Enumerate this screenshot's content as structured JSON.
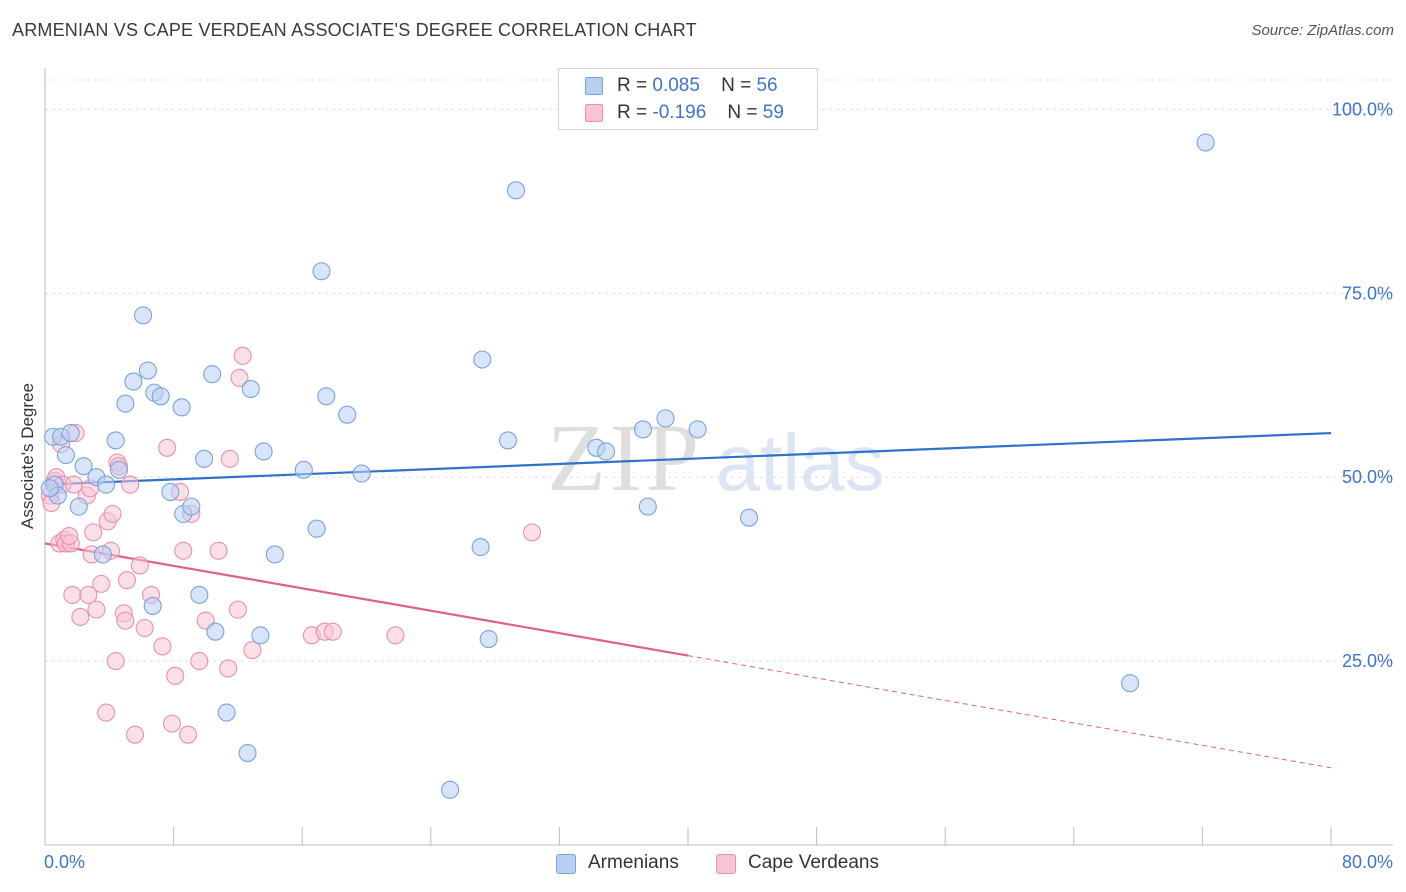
{
  "title": "ARMENIAN VS CAPE VERDEAN ASSOCIATE'S DEGREE CORRELATION CHART",
  "source": "Source: ZipAtlas.com",
  "watermark": {
    "zip": "ZIP",
    "atlas": "atlas"
  },
  "colors": {
    "blue_fill": "#b8d0f2",
    "blue_stroke": "#7aa3dc",
    "blue_line": "#2e73c9",
    "pink_fill": "#f7c4d4",
    "pink_stroke": "#e891ad",
    "pink_line": "#e0608c",
    "axis_text": "#3e74cc",
    "grid": "#dcdcdc"
  },
  "legend": {
    "rows": [
      {
        "r_label": "R =",
        "r_value": "0.085",
        "n_label": "N =",
        "n_value": "56"
      },
      {
        "r_label": "R =",
        "r_value": "-0.196",
        "n_label": "N =",
        "n_value": "59"
      }
    ]
  },
  "bottom_legend": [
    "Armenians",
    "Cape Verdeans"
  ],
  "chart_data": {
    "type": "scatter",
    "xlim": [
      0,
      80
    ],
    "ylim": [
      0,
      104
    ],
    "xlabel": "",
    "ylabel": "Associate's Degree",
    "x_tick_labels": {
      "min": "0.0%",
      "max": "80.0%"
    },
    "y_ticks": [
      25,
      50,
      75,
      100
    ],
    "y_tick_labels": [
      "25.0%",
      "50.0%",
      "75.0%",
      "100.0%"
    ],
    "series": [
      {
        "name": "Armenians",
        "color": "blue",
        "trend": {
          "x0": 0,
          "y0": 49.0,
          "x1": 80,
          "y1": 56.0,
          "dashed_from": null
        },
        "points": [
          [
            0.5,
            55.5
          ],
          [
            0.6,
            49.0
          ],
          [
            0.8,
            47.5
          ],
          [
            1.0,
            55.5
          ],
          [
            1.3,
            53.0
          ],
          [
            1.6,
            56.0
          ],
          [
            2.1,
            46.0
          ],
          [
            2.4,
            51.5
          ],
          [
            3.2,
            50.0
          ],
          [
            3.6,
            39.5
          ],
          [
            3.8,
            49.0
          ],
          [
            4.4,
            55.0
          ],
          [
            4.6,
            51.0
          ],
          [
            5.0,
            60.0
          ],
          [
            5.5,
            63.0
          ],
          [
            6.1,
            72.0
          ],
          [
            6.4,
            64.5
          ],
          [
            6.7,
            32.5
          ],
          [
            6.8,
            61.5
          ],
          [
            7.2,
            61.0
          ],
          [
            7.8,
            48.0
          ],
          [
            8.5,
            59.5
          ],
          [
            8.6,
            45.0
          ],
          [
            9.1,
            46.0
          ],
          [
            9.6,
            34.0
          ],
          [
            9.9,
            52.5
          ],
          [
            10.4,
            64.0
          ],
          [
            10.6,
            29.0
          ],
          [
            11.3,
            18.0
          ],
          [
            12.6,
            12.5
          ],
          [
            12.8,
            62.0
          ],
          [
            13.4,
            28.5
          ],
          [
            13.6,
            53.5
          ],
          [
            14.3,
            39.5
          ],
          [
            16.1,
            51.0
          ],
          [
            16.9,
            43.0
          ],
          [
            17.2,
            78.0
          ],
          [
            17.5,
            61.0
          ],
          [
            18.8,
            58.5
          ],
          [
            19.7,
            50.5
          ],
          [
            25.2,
            7.5
          ],
          [
            27.1,
            40.5
          ],
          [
            27.2,
            66.0
          ],
          [
            27.6,
            28.0
          ],
          [
            28.8,
            55.0
          ],
          [
            29.3,
            89.0
          ],
          [
            34.3,
            54.0
          ],
          [
            34.9,
            53.5
          ],
          [
            37.2,
            56.5
          ],
          [
            37.5,
            46.0
          ],
          [
            38.6,
            58.0
          ],
          [
            40.6,
            56.5
          ],
          [
            43.8,
            44.5
          ],
          [
            67.5,
            22.0
          ],
          [
            72.2,
            95.5
          ],
          [
            0.3,
            48.5
          ]
        ]
      },
      {
        "name": "Cape Verdeans",
        "color": "pink",
        "trend": {
          "x0": 0,
          "y0": 41.0,
          "x1": 80,
          "y1": 10.5,
          "dashed_from": 40
        },
        "points": [
          [
            0.3,
            47.5
          ],
          [
            0.4,
            46.5
          ],
          [
            0.6,
            49.5
          ],
          [
            0.7,
            50.0
          ],
          [
            0.9,
            41.0
          ],
          [
            1.0,
            54.5
          ],
          [
            1.1,
            49.0
          ],
          [
            1.2,
            41.5
          ],
          [
            1.3,
            41.0
          ],
          [
            1.6,
            41.0
          ],
          [
            1.7,
            34.0
          ],
          [
            1.8,
            49.0
          ],
          [
            1.9,
            56.0
          ],
          [
            2.2,
            31.0
          ],
          [
            2.6,
            47.5
          ],
          [
            2.7,
            34.0
          ],
          [
            2.9,
            39.5
          ],
          [
            3.0,
            42.5
          ],
          [
            3.2,
            32.0
          ],
          [
            3.5,
            35.5
          ],
          [
            3.8,
            18.0
          ],
          [
            3.9,
            44.0
          ],
          [
            4.1,
            40.0
          ],
          [
            4.2,
            45.0
          ],
          [
            4.4,
            25.0
          ],
          [
            4.5,
            52.0
          ],
          [
            4.6,
            51.5
          ],
          [
            4.9,
            31.5
          ],
          [
            5.0,
            30.5
          ],
          [
            5.1,
            36.0
          ],
          [
            5.3,
            49.0
          ],
          [
            5.6,
            15.0
          ],
          [
            5.9,
            38.0
          ],
          [
            6.2,
            29.5
          ],
          [
            6.6,
            34.0
          ],
          [
            7.3,
            27.0
          ],
          [
            7.6,
            54.0
          ],
          [
            7.9,
            16.5
          ],
          [
            8.1,
            23.0
          ],
          [
            8.4,
            48.0
          ],
          [
            8.6,
            40.0
          ],
          [
            8.9,
            15.0
          ],
          [
            9.1,
            45.0
          ],
          [
            9.6,
            25.0
          ],
          [
            10.0,
            30.5
          ],
          [
            10.8,
            40.0
          ],
          [
            11.4,
            24.0
          ],
          [
            11.5,
            52.5
          ],
          [
            12.0,
            32.0
          ],
          [
            12.3,
            66.5
          ],
          [
            12.1,
            63.5
          ],
          [
            12.9,
            26.5
          ],
          [
            16.6,
            28.5
          ],
          [
            17.4,
            29.0
          ],
          [
            17.9,
            29.0
          ],
          [
            21.8,
            28.5
          ],
          [
            30.3,
            42.5
          ],
          [
            1.5,
            42.0
          ],
          [
            2.8,
            48.5
          ]
        ]
      }
    ]
  }
}
